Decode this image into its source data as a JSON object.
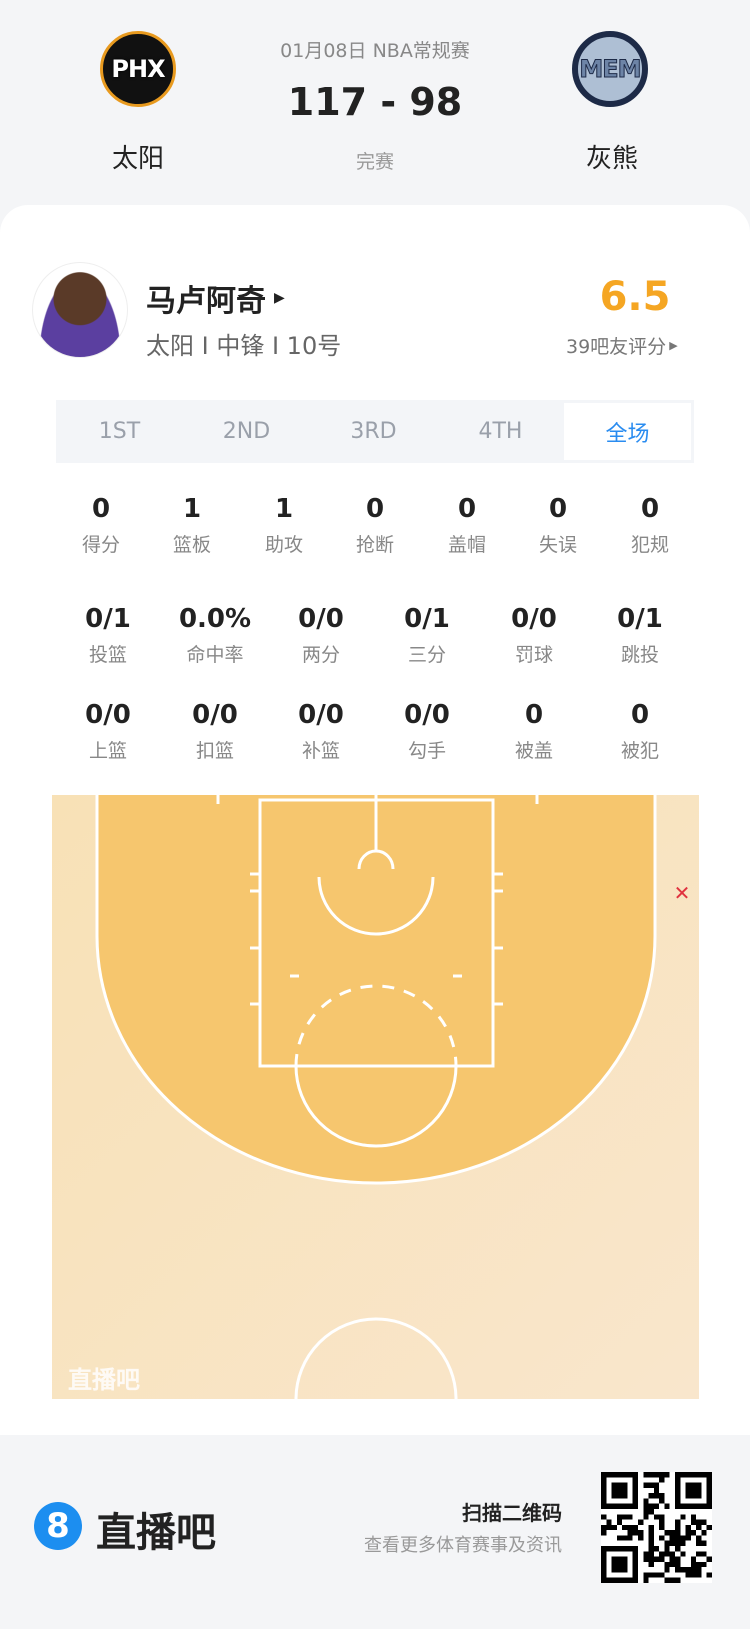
{
  "game": {
    "date_type": "01月08日 NBA常规赛",
    "score": "117 - 98",
    "status": "完赛",
    "home": {
      "name": "太阳",
      "logo_text": "PHX"
    },
    "away": {
      "name": "灰熊",
      "logo_text": "MEM"
    }
  },
  "player": {
    "name": "马卢阿奇",
    "info": "太阳 I 中锋 I 10号",
    "rating": "6.5",
    "rating_label": "39吧友评分",
    "rating_color": "#f5a623"
  },
  "tabs": [
    {
      "label": "1ST"
    },
    {
      "label": "2ND"
    },
    {
      "label": "3RD"
    },
    {
      "label": "4TH"
    },
    {
      "label": "全场",
      "active": true
    }
  ],
  "stats_row1": [
    {
      "v": "0",
      "l": "得分"
    },
    {
      "v": "1",
      "l": "篮板"
    },
    {
      "v": "1",
      "l": "助攻"
    },
    {
      "v": "0",
      "l": "抢断"
    },
    {
      "v": "0",
      "l": "盖帽"
    },
    {
      "v": "0",
      "l": "失误"
    },
    {
      "v": "0",
      "l": "犯规"
    }
  ],
  "stats_row2": [
    {
      "v": "0/1",
      "l": "投篮"
    },
    {
      "v": "0.0%",
      "l": "命中率"
    },
    {
      "v": "0/0",
      "l": "两分"
    },
    {
      "v": "0/1",
      "l": "三分"
    },
    {
      "v": "0/0",
      "l": "罚球"
    },
    {
      "v": "0/1",
      "l": "跳投"
    }
  ],
  "stats_row3": [
    {
      "v": "0/0",
      "l": "上篮"
    },
    {
      "v": "0/0",
      "l": "扣篮"
    },
    {
      "v": "0/0",
      "l": "补篮"
    },
    {
      "v": "0/0",
      "l": "勾手"
    },
    {
      "v": "0",
      "l": "被盖"
    },
    {
      "v": "0",
      "l": "被犯"
    }
  ],
  "shot_chart": {
    "shots": [
      {
        "result": "miss",
        "type": "三分"
      }
    ],
    "watermark": "直播吧",
    "miss_color": "#e0333f"
  },
  "footer": {
    "brand": "直播吧",
    "brand_icon": "8",
    "scan": "扫描二维码",
    "sub": "查看更多体育赛事及资讯"
  }
}
